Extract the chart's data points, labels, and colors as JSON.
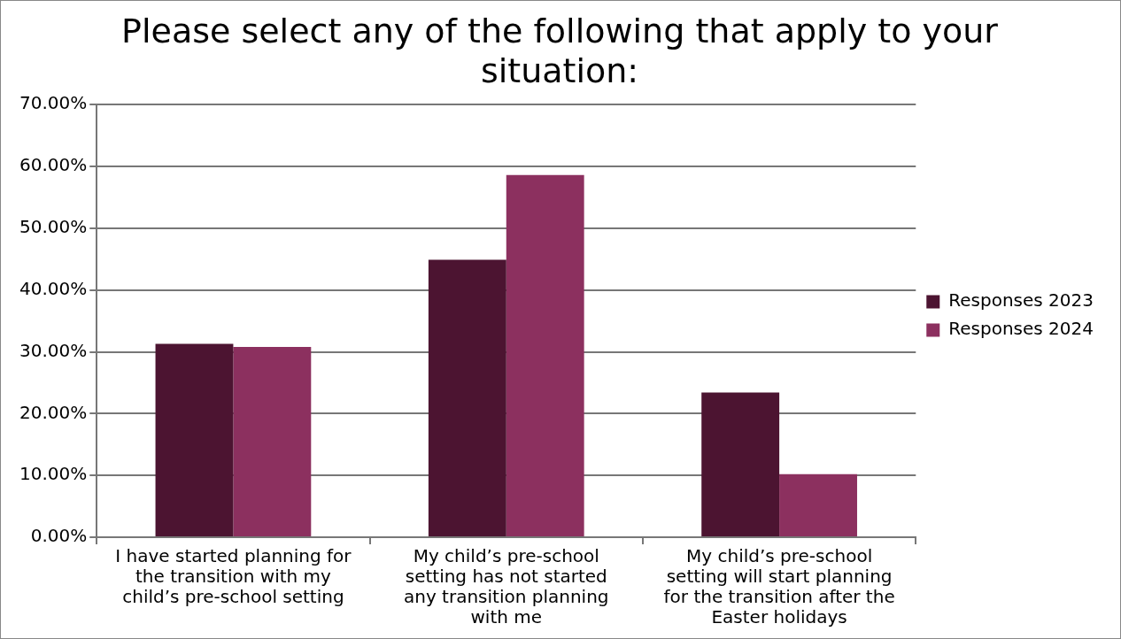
{
  "chart_data": {
    "type": "bar",
    "title": "Please select any of the following that apply to your situation:",
    "categories": [
      "I have started planning for the transition with my child’s pre-school setting",
      "My child’s pre-school setting has not started any transition planning with me",
      "My child’s pre-school setting will start planning for the transition after the Easter holidays"
    ],
    "series": [
      {
        "name": "Responses 2023",
        "color": "#4c1431",
        "values": [
          31.3,
          44.9,
          23.4
        ]
      },
      {
        "name": "Responses 2024",
        "color": "#8c305f",
        "values": [
          30.8,
          58.6,
          10.2
        ]
      }
    ],
    "ylim": [
      0,
      70
    ],
    "yticks": [
      {
        "value": 0,
        "label": "0.00%"
      },
      {
        "value": 10,
        "label": "10.00%"
      },
      {
        "value": 20,
        "label": "20.00%"
      },
      {
        "value": 30,
        "label": "30.00%"
      },
      {
        "value": 40,
        "label": "40.00%"
      },
      {
        "value": 50,
        "label": "50.00%"
      },
      {
        "value": 60,
        "label": "60.00%"
      },
      {
        "value": 70,
        "label": "70.00%"
      }
    ],
    "grid": "y",
    "legend": "right"
  }
}
